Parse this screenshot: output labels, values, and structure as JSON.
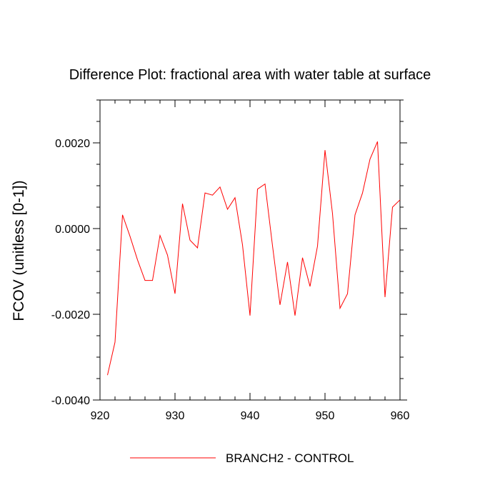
{
  "chart_data": {
    "type": "line",
    "title": "Difference Plot: fractional area with water table at surface",
    "xlabel": "",
    "ylabel": "FCOV  (unitless [0-1])",
    "xlim": [
      920,
      960
    ],
    "ylim": [
      -0.004,
      0.003
    ],
    "x_ticks": [
      920,
      930,
      940,
      950,
      960
    ],
    "x_tick_labels": [
      "920",
      "930",
      "940",
      "950",
      "960"
    ],
    "y_ticks": [
      -0.004,
      -0.002,
      0.0,
      0.002
    ],
    "y_tick_labels": [
      "-0.0040",
      "-0.0020",
      "0.0000",
      "0.0020"
    ],
    "grid": false,
    "legend_position": "bottom-center",
    "series": [
      {
        "name": "BRANCH2 - CONTROL",
        "color": "#ff0000",
        "x": [
          921,
          922,
          923,
          924,
          925,
          926,
          927,
          928,
          929,
          930,
          931,
          932,
          933,
          934,
          935,
          936,
          937,
          938,
          939,
          940,
          941,
          942,
          943,
          944,
          945,
          946,
          947,
          948,
          949,
          950,
          951,
          952,
          953,
          954,
          955,
          956,
          957,
          958,
          959,
          960
        ],
        "y": [
          -0.00342,
          -0.00265,
          0.00032,
          -0.00018,
          -0.00073,
          -0.00121,
          -0.00121,
          -0.00016,
          -0.00062,
          -0.00152,
          0.00058,
          -0.00027,
          -0.00045,
          0.00083,
          0.00078,
          0.00097,
          0.00045,
          0.00072,
          -0.00038,
          -0.00203,
          0.00092,
          0.00104,
          -0.0004,
          -0.00178,
          -0.00078,
          -0.00203,
          -0.00068,
          -0.00135,
          -0.00041,
          0.00183,
          0.00035,
          -0.00186,
          -0.00152,
          0.00032,
          0.00083,
          0.00162,
          0.00203,
          -0.0016,
          0.0005,
          0.00067
        ]
      }
    ]
  }
}
